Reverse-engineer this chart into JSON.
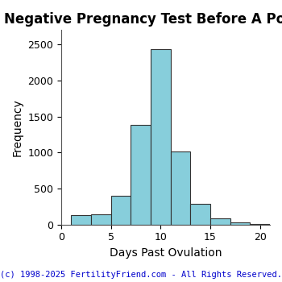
{
  "title": "Negative Pregnancy Test Before A Positive",
  "xlabel": "Days Past Ovulation",
  "ylabel": "Frequency",
  "bar_color": "#87CEDB",
  "bar_edge_color": "#333333",
  "background_color": "#ffffff",
  "xlim": [
    0,
    21
  ],
  "ylim": [
    0,
    2700
  ],
  "yticks": [
    0,
    500,
    1000,
    1500,
    2000,
    2500
  ],
  "xticks": [
    0,
    5,
    10,
    15,
    20
  ],
  "bin_edges": [
    1,
    3,
    5,
    7,
    9,
    11,
    13,
    15,
    17,
    19,
    21
  ],
  "bar_heights": [
    130,
    140,
    400,
    1380,
    2430,
    1020,
    290,
    85,
    30,
    10
  ],
  "footnote": "(c) 1998-2025 FertilityFriend.com - All Rights Reserved.",
  "footnote_color": "#0000cc",
  "title_fontsize": 12,
  "axis_fontsize": 10,
  "tick_fontsize": 9,
  "footnote_fontsize": 7.5
}
